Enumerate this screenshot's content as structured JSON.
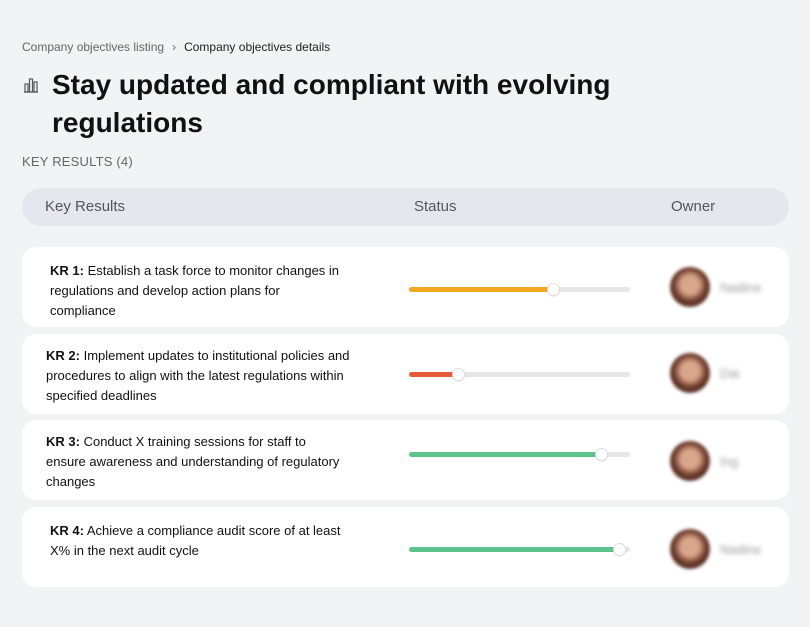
{
  "breadcrumb": {
    "parent": "Company objectives listing",
    "separator": "›",
    "current": "Company objectives details"
  },
  "objective": {
    "icon": "building-columns-icon",
    "title": "Stay updated and compliant with evolving regulations"
  },
  "key_results_label": "KEY RESULTS (4)",
  "table": {
    "headers": {
      "key_results": "Key Results",
      "status": "Status",
      "owner": "Owner"
    },
    "rows": [
      {
        "kr": "KR 1:",
        "text": "Establish a task force to monitor changes in regulations and develop action plans for compliance",
        "progress": 0.65,
        "color": "#f5a623",
        "owner": "Nadine"
      },
      {
        "kr": "KR 2:",
        "text": "Implement updates to institutional policies and procedures to align with the latest regulations within specified deadlines",
        "progress": 0.22,
        "color": "#e8583a",
        "owner": "Dai"
      },
      {
        "kr": "KR 3:",
        "text": "Conduct X training sessions for staff to ensure awareness and understanding of regulatory changes",
        "progress": 0.87,
        "color": "#5ac48b",
        "owner": "Ing"
      },
      {
        "kr": "KR 4:",
        "text": "Achieve a compliance audit score of at least X% in the next audit cycle",
        "progress": 0.95,
        "color": "#5ac48b",
        "owner": "Nadine"
      }
    ]
  }
}
